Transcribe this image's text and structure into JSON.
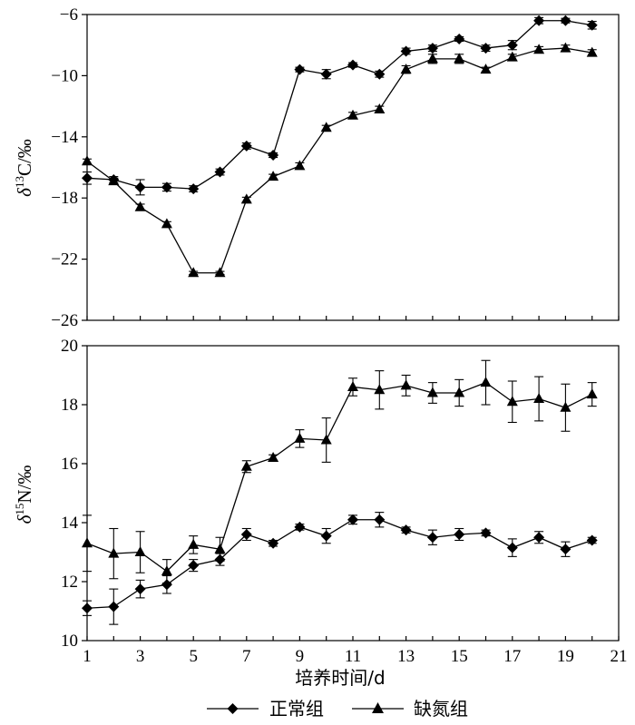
{
  "chart_data": [
    {
      "type": "line",
      "ylabel": "δ¹³C/‰",
      "ylabel_main": "δ",
      "ylabel_sup": "13",
      "ylabel_rest": "C/‰",
      "ylim": [
        -26,
        -6
      ],
      "yticks": [
        -6,
        -10,
        -14,
        -18,
        -22,
        -26
      ],
      "ytick_labels": [
        "−6",
        "−10",
        "−14",
        "−18",
        "−22",
        "−26"
      ],
      "xlim": [
        1,
        21
      ],
      "x": [
        1,
        2,
        3,
        4,
        5,
        6,
        7,
        8,
        9,
        10,
        11,
        12,
        13,
        14,
        15,
        16,
        17,
        18,
        19,
        20
      ],
      "grid": false,
      "series": [
        {
          "name": "正常组",
          "marker": "diamond",
          "values": [
            -16.7,
            -16.8,
            -17.3,
            -17.3,
            -17.4,
            -16.3,
            -14.6,
            -15.2,
            -9.6,
            -9.9,
            -9.3,
            -9.9,
            -8.4,
            -8.2,
            -7.6,
            -8.2,
            -8.0,
            -6.4,
            -6.4,
            -6.7
          ],
          "errors": [
            0.4,
            0.2,
            0.5,
            0.25,
            0.2,
            0.2,
            0.2,
            0.15,
            0.15,
            0.3,
            0.15,
            0.2,
            0.2,
            0.2,
            0.15,
            0.2,
            0.3,
            0.2,
            0.15,
            0.25
          ]
        },
        {
          "name": "缺氮组",
          "marker": "triangle",
          "values": [
            -15.6,
            -16.9,
            -18.6,
            -19.7,
            -22.9,
            -22.9,
            -18.1,
            -16.6,
            -15.9,
            -13.4,
            -12.6,
            -12.2,
            -9.6,
            -8.9,
            -8.9,
            -9.6,
            -8.8,
            -8.3,
            -8.2,
            -8.5
          ],
          "errors": [
            0.15,
            0.2,
            0.2,
            0.15,
            0.1,
            0.1,
            0.15,
            0.15,
            0.2,
            0.15,
            0.2,
            0.2,
            0.25,
            0.3,
            0.3,
            0.15,
            0.2,
            0.2,
            0.2,
            0.2
          ]
        }
      ]
    },
    {
      "type": "line",
      "ylabel": "δ¹⁵N/‰",
      "ylabel_main": "δ",
      "ylabel_sup": "15",
      "ylabel_rest": "N/‰",
      "ylim": [
        10,
        20
      ],
      "yticks": [
        10,
        12,
        14,
        16,
        18,
        20
      ],
      "ytick_labels": [
        "10",
        "12",
        "14",
        "16",
        "18",
        "20"
      ],
      "xlabel": "培养时间/d",
      "xlim": [
        1,
        21
      ],
      "xticks": [
        1,
        3,
        5,
        7,
        9,
        11,
        13,
        15,
        17,
        19,
        21
      ],
      "xtick_labels": [
        "1",
        "3",
        "5",
        "7",
        "9",
        "11",
        "13",
        "15",
        "17",
        "19",
        "21"
      ],
      "x": [
        1,
        2,
        3,
        4,
        5,
        6,
        7,
        8,
        9,
        10,
        11,
        12,
        13,
        14,
        15,
        16,
        17,
        18,
        19,
        20
      ],
      "grid": false,
      "series": [
        {
          "name": "正常组",
          "marker": "diamond",
          "values": [
            11.1,
            11.15,
            11.75,
            11.9,
            12.55,
            12.75,
            13.6,
            13.3,
            13.85,
            13.55,
            14.1,
            14.1,
            13.75,
            13.5,
            13.6,
            13.65,
            13.15,
            13.5,
            13.1,
            13.4
          ],
          "errors": [
            0.25,
            0.6,
            0.3,
            0.3,
            0.2,
            0.2,
            0.2,
            0.1,
            0.1,
            0.25,
            0.15,
            0.25,
            0.1,
            0.25,
            0.2,
            0.1,
            0.3,
            0.2,
            0.25,
            0.1
          ]
        },
        {
          "name": "缺氮组",
          "marker": "triangle",
          "values": [
            13.3,
            12.95,
            13.0,
            12.35,
            13.25,
            13.1,
            15.9,
            16.2,
            16.85,
            16.8,
            18.6,
            18.5,
            18.65,
            18.4,
            18.4,
            18.75,
            18.1,
            18.2,
            17.9,
            18.35
          ],
          "errors": [
            0.95,
            0.85,
            0.7,
            0.4,
            0.3,
            0.4,
            0.2,
            0.1,
            0.3,
            0.75,
            0.3,
            0.65,
            0.35,
            0.35,
            0.45,
            0.75,
            0.7,
            0.75,
            0.8,
            0.4
          ]
        }
      ]
    }
  ],
  "legend": {
    "position": "bottom",
    "items": [
      {
        "label": "正常组",
        "marker": "diamond"
      },
      {
        "label": "缺氮组",
        "marker": "triangle"
      }
    ]
  }
}
